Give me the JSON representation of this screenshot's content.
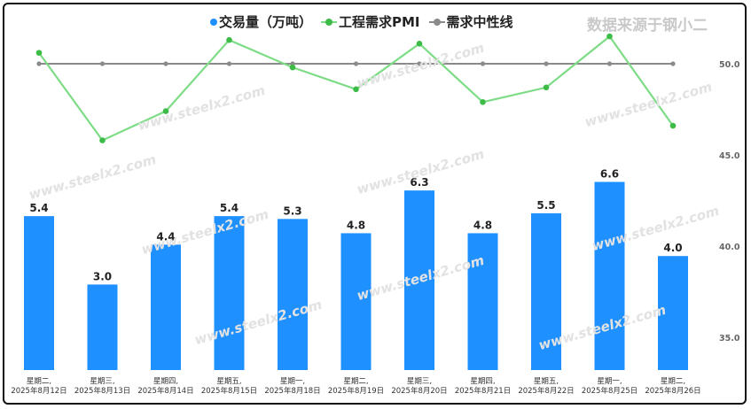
{
  "legend": {
    "bar_series_name": "交易量（万吨）",
    "line_series_name": "工程需求PMI",
    "ref_series_name": "需求中性线"
  },
  "source_note": "数据来源于钢小二",
  "watermark_text": "www.steelx2.com",
  "colors": {
    "bar": "#1e90ff",
    "pmi_line": "#7ddc85",
    "pmi_marker": "#3dbb47",
    "neutral_line": "#8a8a8a"
  },
  "chart_data": {
    "type": "bar",
    "categories": [
      [
        "星期二,",
        "2025年8月12日"
      ],
      [
        "星期三,",
        "2025年8月13日"
      ],
      [
        "星期四,",
        "2025年8月14日"
      ],
      [
        "星期五,",
        "2025年8月15日"
      ],
      [
        "星期一,",
        "2025年8月18日"
      ],
      [
        "星期二,",
        "2025年8月19日"
      ],
      [
        "星期三,",
        "2025年8月20日"
      ],
      [
        "星期四,",
        "2025年8月21日"
      ],
      [
        "星期五,",
        "2025年8月22日"
      ],
      [
        "星期一,",
        "2025年8月25日"
      ],
      [
        "星期二,",
        "2025年8月26日"
      ]
    ],
    "series": [
      {
        "name": "交易量（万吨）",
        "type": "bar",
        "axis": "left",
        "values": [
          5.4,
          3.0,
          4.4,
          5.4,
          5.3,
          4.8,
          6.3,
          4.8,
          5.5,
          6.6,
          4.0
        ],
        "labels": [
          "5.4",
          "3.0",
          "4.4",
          "5.4",
          "5.3",
          "4.8",
          "6.3",
          "4.8",
          "5.5",
          "6.6",
          "4.0"
        ]
      },
      {
        "name": "工程需求PMI",
        "type": "line",
        "axis": "right",
        "values": [
          50.6,
          45.8,
          47.4,
          51.3,
          49.8,
          48.6,
          51.1,
          47.9,
          48.7,
          51.5,
          46.6
        ]
      },
      {
        "name": "需求中性线",
        "type": "line",
        "axis": "right",
        "values": [
          50,
          50,
          50,
          50,
          50,
          50,
          50,
          50,
          50,
          50,
          50
        ]
      }
    ],
    "left_axis": {
      "range": [
        0,
        11
      ]
    },
    "right_axis": {
      "range": [
        33,
        53
      ],
      "ticks": [
        "35.0",
        "40.0",
        "45.0",
        "50.0"
      ]
    },
    "legend_position": "top-center",
    "grid": false
  }
}
